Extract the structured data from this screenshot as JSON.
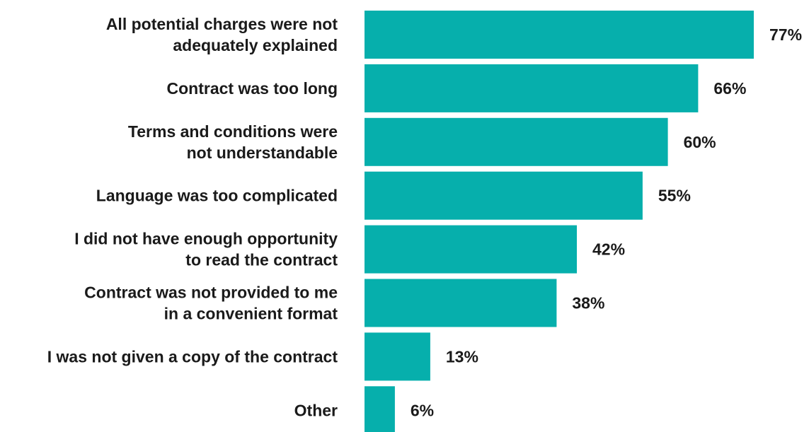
{
  "chart_data": {
    "type": "bar",
    "orientation": "horizontal",
    "categories": [
      [
        "All potential charges were not",
        "adequately explained"
      ],
      [
        "Contract was too long"
      ],
      [
        "Terms and conditions were",
        "not understandable"
      ],
      [
        "Language was too complicated"
      ],
      [
        "I did not have enough opportunity",
        "to read the contract"
      ],
      [
        "Contract was not provided to me",
        "in a convenient format"
      ],
      [
        "I was not given a copy of the contract"
      ],
      [
        "Other"
      ]
    ],
    "values": [
      77,
      66,
      60,
      55,
      42,
      38,
      13,
      6
    ],
    "value_labels": [
      "77%",
      "66%",
      "60%",
      "55%",
      "42%",
      "38%",
      "13%",
      "6%"
    ],
    "unit": "%",
    "xlim": [
      0,
      77
    ],
    "bar_color": "#06AFAC",
    "text_color": "#1a1a1a",
    "grid": false,
    "legend": "none"
  }
}
